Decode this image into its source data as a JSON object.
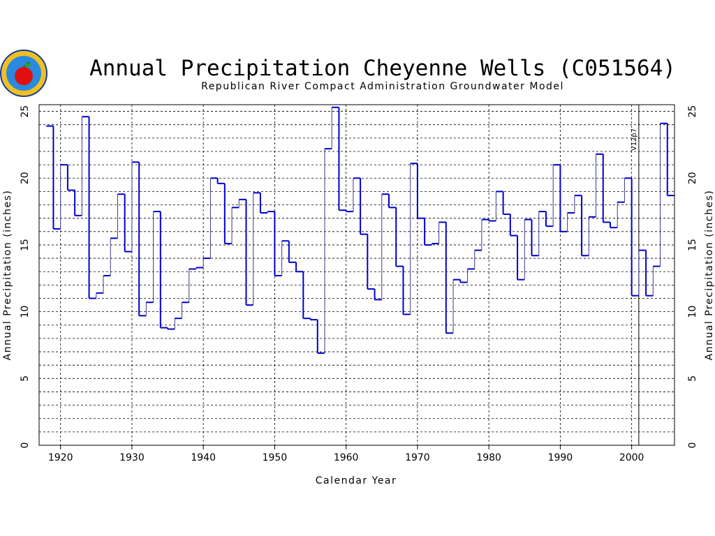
{
  "chart_data": {
    "type": "line",
    "step": true,
    "title": "Annual Precipitation Cheyenne Wells (C051564)",
    "subtitle": "Republican River Compact Administration Groundwater Model",
    "xlabel": "Calendar Year",
    "ylabel": "Annual Precipitation (inches)",
    "xlim": [
      1917,
      2006
    ],
    "ylim": [
      0,
      25.5
    ],
    "x_ticks": [
      1920,
      1930,
      1940,
      1950,
      1960,
      1970,
      1980,
      1990,
      2000
    ],
    "y_ticks": [
      0,
      5,
      10,
      15,
      20,
      25
    ],
    "grid": true,
    "line_color": "#0000cc",
    "annotation": {
      "x": 2001,
      "label": "V12p7"
    },
    "x": [
      1918,
      1919,
      1920,
      1921,
      1922,
      1923,
      1924,
      1925,
      1926,
      1927,
      1928,
      1929,
      1930,
      1931,
      1932,
      1933,
      1934,
      1935,
      1936,
      1937,
      1938,
      1939,
      1940,
      1941,
      1942,
      1943,
      1944,
      1945,
      1946,
      1947,
      1948,
      1949,
      1950,
      1951,
      1952,
      1953,
      1954,
      1955,
      1956,
      1957,
      1958,
      1959,
      1960,
      1961,
      1962,
      1963,
      1964,
      1965,
      1966,
      1967,
      1968,
      1969,
      1970,
      1971,
      1972,
      1973,
      1974,
      1975,
      1976,
      1977,
      1978,
      1979,
      1980,
      1981,
      1982,
      1983,
      1984,
      1985,
      1986,
      1987,
      1988,
      1989,
      1990,
      1991,
      1992,
      1993,
      1994,
      1995,
      1996,
      1997,
      1998,
      1999,
      2000,
      2001,
      2002,
      2003,
      2004,
      2005
    ],
    "values": [
      23.9,
      16.2,
      21.0,
      19.1,
      17.2,
      24.6,
      11.0,
      11.4,
      12.7,
      15.5,
      18.8,
      14.5,
      21.2,
      9.7,
      10.7,
      17.5,
      8.8,
      8.7,
      9.5,
      10.7,
      13.2,
      13.3,
      14.0,
      20.0,
      19.6,
      15.1,
      17.8,
      18.4,
      10.5,
      18.9,
      17.4,
      17.5,
      12.7,
      15.3,
      13.7,
      13.0,
      9.5,
      9.4,
      6.9,
      22.2,
      25.3,
      17.6,
      17.5,
      20.0,
      15.8,
      11.7,
      10.9,
      18.8,
      17.8,
      13.4,
      9.8,
      21.1,
      17.0,
      15.0,
      15.1,
      16.7,
      8.4,
      12.4,
      12.2,
      13.2,
      14.6,
      16.9,
      16.8,
      19.0,
      17.3,
      15.7,
      12.4,
      16.9,
      14.2,
      17.5,
      16.4,
      21.0,
      16.0,
      17.4,
      18.7,
      14.2,
      17.1,
      21.8,
      16.7,
      16.3,
      18.2,
      20.0,
      11.2,
      14.6,
      11.2,
      13.4,
      24.1,
      18.7
    ]
  },
  "left_axis": {
    "label": "Annual Precipitation (inches)"
  },
  "right_axis": {
    "label": "Annual Precipitation (inches)"
  },
  "logo": {
    "name": "apple-logo"
  }
}
